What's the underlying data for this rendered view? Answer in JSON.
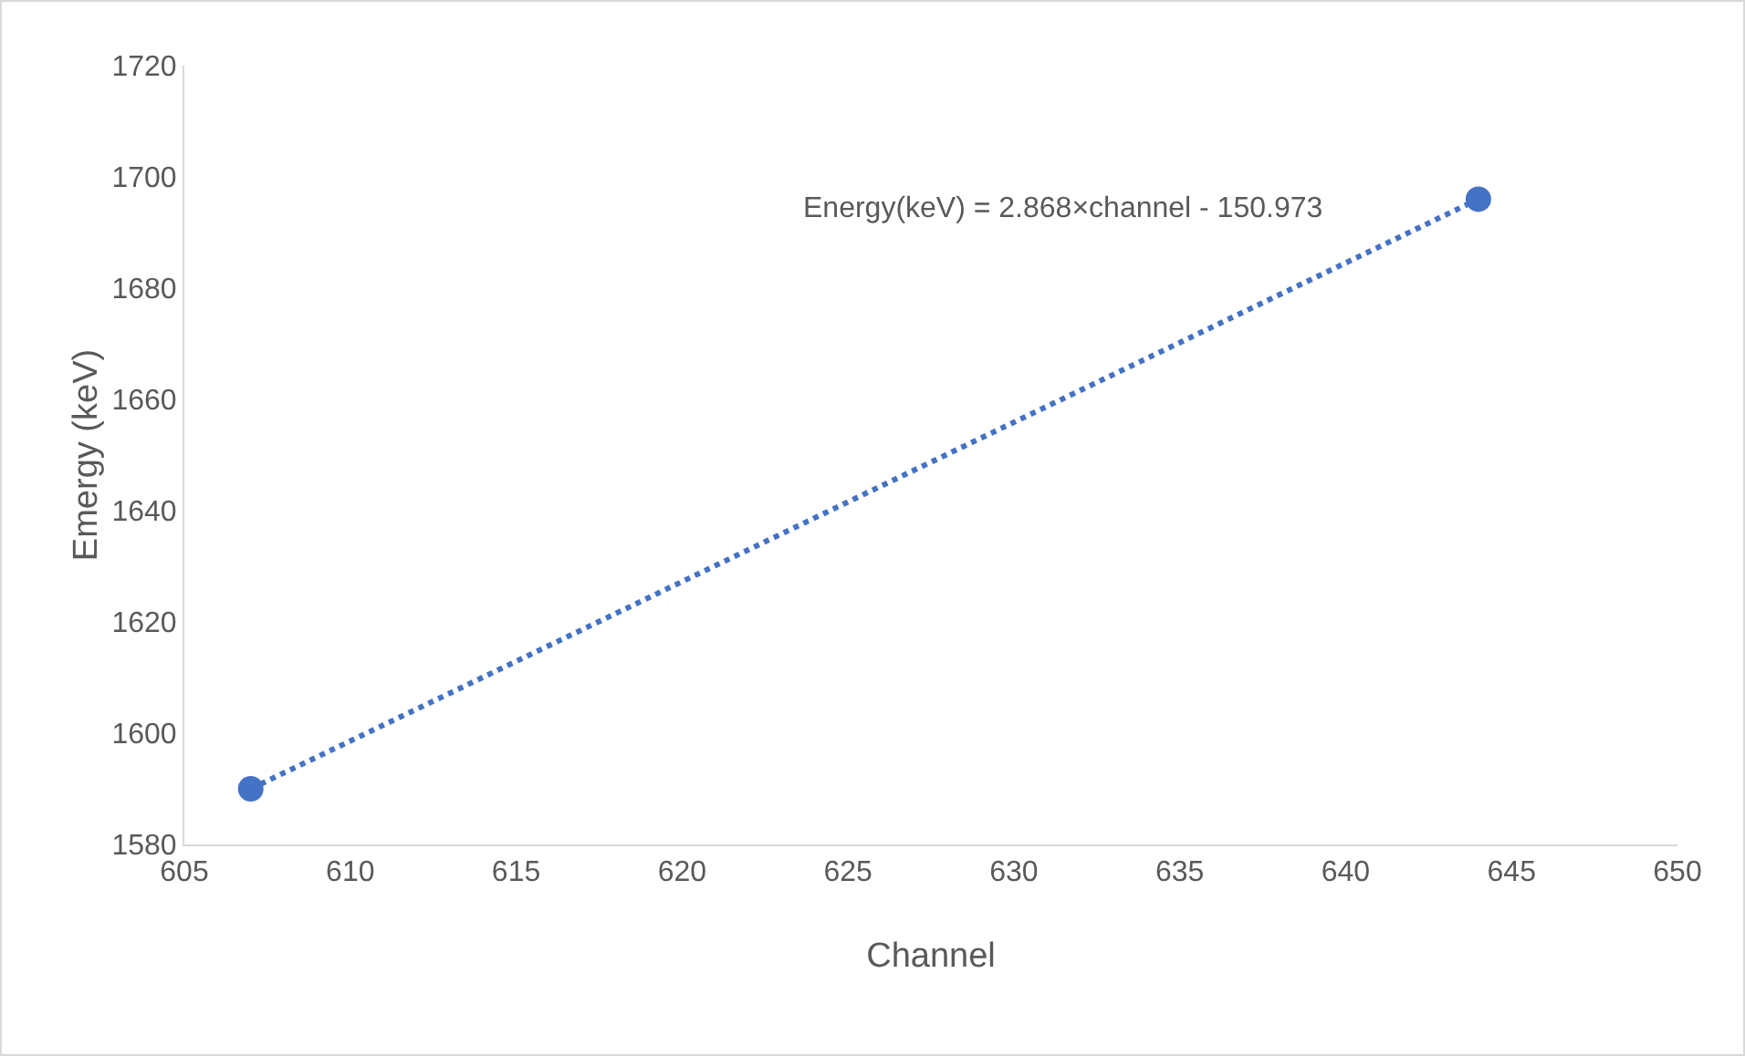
{
  "chart_data": {
    "type": "scatter",
    "xlabel": "Channel",
    "ylabel": "Emergy (keV)",
    "xlim": [
      605,
      650
    ],
    "xticks": [
      605,
      610,
      615,
      620,
      625,
      630,
      635,
      640,
      645,
      650
    ],
    "ylim": [
      1580,
      1720
    ],
    "yticks": [
      1580,
      1600,
      1620,
      1640,
      1660,
      1680,
      1700,
      1720
    ],
    "grid": false,
    "x": [
      607,
      644
    ],
    "series": [
      {
        "color": "#4472c4",
        "values": [
          1590,
          1696
        ],
        "marker": "circle"
      },
      {
        "type": "line",
        "color": "#4472c4",
        "values": [
          1590,
          1696
        ],
        "line_style": "dotted"
      }
    ],
    "annotations": [
      "Energy(keV) = 2.868×channel - 150.973"
    ]
  }
}
